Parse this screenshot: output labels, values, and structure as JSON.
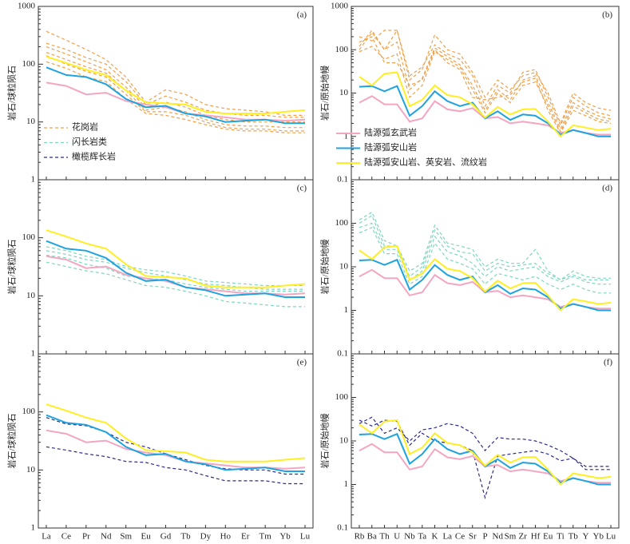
{
  "chart_data": [
    {
      "type": "line",
      "panel": "(a)",
      "ylabel": "岩石/球粒陨石",
      "log": true,
      "ylim": [
        1,
        1000
      ],
      "yticks": [
        1,
        10,
        100,
        1000
      ],
      "legend": [
        {
          "name": "花岗岩",
          "color": "#f0a04a",
          "dash": true
        },
        {
          "name": "闪长岩类",
          "color": "#7fd6c0",
          "dash": true
        },
        {
          "name": "橄榄辉长岩",
          "color": "#2b2b8c",
          "dash": true
        }
      ],
      "series": [
        {
          "color": "#f0a04a",
          "dash": true,
          "values": [
            370,
            260,
            180,
            120,
            60,
            22,
            36,
            30,
            20,
            17,
            16,
            15,
            13,
            13
          ]
        },
        {
          "color": "#f0a04a",
          "dash": true,
          "values": [
            230,
            180,
            130,
            100,
            50,
            20,
            28,
            22,
            16,
            14,
            13,
            13,
            12,
            12
          ]
        },
        {
          "color": "#f0a04a",
          "dash": true,
          "values": [
            200,
            150,
            110,
            80,
            40,
            18,
            22,
            18,
            13,
            11,
            10,
            10,
            10,
            10
          ]
        },
        {
          "color": "#f0a04a",
          "dash": true,
          "values": [
            160,
            120,
            90,
            70,
            35,
            16,
            18,
            15,
            11,
            9,
            8.5,
            8.5,
            8,
            8
          ]
        },
        {
          "color": "#f0a04a",
          "dash": true,
          "values": [
            140,
            100,
            75,
            60,
            30,
            15,
            15,
            13,
            10,
            8,
            7.5,
            7.5,
            7,
            7
          ]
        },
        {
          "color": "#f0a04a",
          "dash": true,
          "values": [
            110,
            85,
            60,
            50,
            25,
            14,
            13,
            11,
            9,
            7.5,
            7,
            7,
            6.5,
            6.5
          ]
        },
        {
          "color": "#f4a6c0",
          "dash": false,
          "values": [
            48,
            42,
            30,
            32,
            23,
            20,
            18,
            14,
            13,
            12,
            11,
            11,
            10.5,
            11
          ]
        },
        {
          "color": "#1ea3e0",
          "dash": false,
          "values": [
            88,
            65,
            60,
            45,
            25,
            18,
            19,
            14,
            12.5,
            10,
            10.5,
            11,
            9.5,
            9.5
          ]
        },
        {
          "color": "#ffee22",
          "dash": false,
          "values": [
            135,
            105,
            80,
            65,
            35,
            22,
            21,
            20,
            15,
            14,
            14,
            14,
            15,
            16
          ]
        }
      ]
    },
    {
      "type": "line",
      "panel": "(b)",
      "ylabel": "岩石/原始地幔",
      "log": true,
      "ylim": [
        0.1,
        1000
      ],
      "yticks": [
        0.1,
        1,
        10,
        100,
        1000
      ],
      "legend": [
        {
          "name": "陆源弧玄武岩",
          "color": "#f4a6c0",
          "dash": false
        },
        {
          "name": "陆源弧安山岩",
          "color": "#1ea3e0",
          "dash": false
        },
        {
          "name": "陆源弧安山岩、英安岩、流纹岩",
          "color": "#ffee22",
          "dash": false
        }
      ],
      "series": [
        {
          "color": "#f0a04a",
          "dash": true,
          "values": [
            120,
            280,
            100,
            280,
            20,
            35,
            220,
            100,
            80,
            30,
            8,
            20,
            12,
            25,
            30,
            10,
            2,
            10,
            6,
            4.5,
            4
          ]
        },
        {
          "color": "#f0a04a",
          "dash": true,
          "values": [
            200,
            160,
            280,
            280,
            25,
            40,
            130,
            80,
            60,
            25,
            5,
            15,
            10,
            30,
            35,
            8,
            1.8,
            8,
            5,
            3.5,
            3
          ]
        },
        {
          "color": "#f0a04a",
          "dash": true,
          "values": [
            100,
            250,
            100,
            150,
            12,
            22,
            110,
            70,
            45,
            15,
            4,
            12,
            7,
            20,
            25,
            6,
            1.5,
            6,
            4,
            3,
            2.5
          ]
        },
        {
          "color": "#f0a04a",
          "dash": true,
          "values": [
            90,
            120,
            60,
            80,
            8,
            15,
            90,
            60,
            40,
            12,
            3.5,
            10,
            6,
            15,
            18,
            5,
            1.3,
            5,
            3.5,
            2.5,
            2.2
          ]
        },
        {
          "color": "#f0a04a",
          "dash": true,
          "values": [
            150,
            200,
            50,
            50,
            15,
            20,
            100,
            50,
            35,
            8,
            7,
            8,
            9,
            18,
            22,
            4,
            1.2,
            4,
            3,
            2.2,
            2
          ]
        },
        {
          "color": "#f4a6c0",
          "dash": false,
          "values": [
            6,
            8.5,
            5.5,
            5.5,
            2.2,
            2.6,
            6.5,
            4.2,
            3.8,
            4.5,
            2.6,
            2.8,
            2,
            2.2,
            2,
            1.8,
            1.2,
            1.4,
            1.2,
            1.1,
            1.1
          ]
        },
        {
          "color": "#1ea3e0",
          "dash": false,
          "values": [
            14,
            14.5,
            11,
            14.5,
            3,
            5,
            11,
            6.5,
            5,
            6,
            2.6,
            3.8,
            2.4,
            3.2,
            3,
            2,
            1.1,
            1.4,
            1.2,
            1,
            1
          ]
        },
        {
          "color": "#ffee22",
          "dash": false,
          "values": [
            24,
            15,
            28,
            30,
            5,
            7,
            15,
            9,
            8,
            5.5,
            2.7,
            4.8,
            3.2,
            4.2,
            4.3,
            2.2,
            1,
            1.8,
            1.6,
            1.4,
            1.5
          ]
        }
      ]
    },
    {
      "type": "line",
      "panel": "(c)",
      "ylabel": "岩石/球粒陨石",
      "log": true,
      "ylim": [
        1,
        1000
      ],
      "yticks": [
        1,
        10,
        100
      ],
      "series": [
        {
          "color": "#7fd6c0",
          "dash": true,
          "values": [
            70,
            60,
            48,
            42,
            32,
            28,
            26,
            22,
            18,
            17,
            16,
            15,
            15,
            15
          ]
        },
        {
          "color": "#7fd6c0",
          "dash": true,
          "values": [
            60,
            52,
            42,
            38,
            30,
            25,
            22,
            19,
            16,
            15,
            14,
            13,
            13,
            13
          ]
        },
        {
          "color": "#7fd6c0",
          "dash": true,
          "values": [
            50,
            45,
            35,
            30,
            22,
            20,
            19,
            16,
            14,
            13,
            12,
            12,
            12,
            12
          ]
        },
        {
          "color": "#7fd6c0",
          "dash": true,
          "values": [
            38,
            32,
            27,
            24,
            19,
            15,
            14,
            12,
            10,
            8,
            7.5,
            7,
            6.5,
            6.5
          ]
        },
        {
          "color": "#f4a6c0",
          "dash": false,
          "values": [
            48,
            42,
            30,
            32,
            23,
            20,
            18,
            14,
            13,
            12,
            11,
            11,
            10.5,
            11
          ]
        },
        {
          "color": "#1ea3e0",
          "dash": false,
          "values": [
            88,
            65,
            60,
            45,
            25,
            18,
            19,
            14,
            12.5,
            10,
            10.5,
            11,
            9.5,
            9.5
          ]
        },
        {
          "color": "#ffee22",
          "dash": false,
          "values": [
            135,
            105,
            80,
            65,
            35,
            22,
            21,
            20,
            15,
            14,
            14,
            14,
            15,
            16
          ]
        }
      ]
    },
    {
      "type": "line",
      "panel": "(d)",
      "ylabel": "岩石/原始地幔",
      "log": true,
      "ylim": [
        0.1,
        1000
      ],
      "yticks": [
        0.1,
        1,
        10,
        100
      ],
      "series": [
        {
          "color": "#7fd6c0",
          "dash": true,
          "values": [
            120,
            180,
            40,
            30,
            8,
            12,
            90,
            35,
            30,
            25,
            10,
            15,
            12,
            12,
            25,
            8,
            5,
            8,
            6,
            5.5,
            5.5
          ]
        },
        {
          "color": "#7fd6c0",
          "dash": true,
          "values": [
            100,
            150,
            30,
            30,
            6,
            10,
            70,
            30,
            22,
            20,
            8,
            12,
            10,
            11,
            12,
            7,
            5,
            6.5,
            5,
            5,
            5
          ]
        },
        {
          "color": "#7fd6c0",
          "dash": true,
          "values": [
            80,
            100,
            25,
            25,
            5,
            8,
            50,
            22,
            18,
            12,
            6,
            10,
            8,
            9,
            10,
            6,
            4.5,
            6,
            4.5,
            4,
            4
          ]
        },
        {
          "color": "#7fd6c0",
          "dash": true,
          "values": [
            60,
            80,
            20,
            20,
            4,
            6,
            35,
            15,
            12,
            9,
            4,
            7,
            6,
            5,
            6,
            4,
            3,
            4,
            3,
            2.5,
            2.5
          ]
        },
        {
          "color": "#f4a6c0",
          "dash": false,
          "values": [
            6,
            8.5,
            5.5,
            5.5,
            2.2,
            2.6,
            6.5,
            4.2,
            3.8,
            4.5,
            2.6,
            2.8,
            2,
            2.2,
            2,
            1.8,
            1.2,
            1.4,
            1.2,
            1.1,
            1.1
          ]
        },
        {
          "color": "#1ea3e0",
          "dash": false,
          "values": [
            14,
            14.5,
            11,
            14.5,
            3,
            5,
            11,
            6.5,
            5,
            6,
            2.6,
            3.8,
            2.4,
            3.2,
            3,
            2,
            1.1,
            1.4,
            1.2,
            1,
            1
          ]
        },
        {
          "color": "#ffee22",
          "dash": false,
          "values": [
            24,
            15,
            28,
            30,
            5,
            7,
            15,
            9,
            8,
            5.5,
            2.7,
            4.8,
            3.2,
            4.2,
            4.3,
            2.2,
            1,
            1.8,
            1.6,
            1.4,
            1.5
          ]
        }
      ]
    },
    {
      "type": "line",
      "panel": "(e)",
      "ylabel": "岩石/球粒陨石",
      "log": true,
      "ylim": [
        1,
        1000
      ],
      "yticks": [
        1,
        10,
        100
      ],
      "categories": [
        "La",
        "Ce",
        "Pr",
        "Nd",
        "Sm",
        "Eu",
        "Gd",
        "Tb",
        "Dy",
        "Ho",
        "Er",
        "Tm",
        "Yb",
        "Lu"
      ],
      "series": [
        {
          "color": "#2b2b8c",
          "dash": true,
          "values": [
            80,
            62,
            58,
            45,
            30,
            25,
            19,
            15,
            12,
            10.5,
            10,
            10,
            8.5,
            8.5
          ]
        },
        {
          "color": "#2b2b8c",
          "dash": true,
          "values": [
            25,
            22,
            19,
            17,
            14,
            13.5,
            11,
            10,
            8,
            6.5,
            6.5,
            6.5,
            5.8,
            5.8
          ]
        },
        {
          "color": "#f4a6c0",
          "dash": false,
          "values": [
            48,
            42,
            30,
            32,
            23,
            20,
            18,
            14,
            13,
            12,
            11,
            11,
            10.5,
            11
          ]
        },
        {
          "color": "#1ea3e0",
          "dash": false,
          "values": [
            88,
            65,
            60,
            45,
            25,
            18,
            19,
            14,
            12.5,
            10,
            10.5,
            11,
            9.5,
            9.5
          ]
        },
        {
          "color": "#ffee22",
          "dash": false,
          "values": [
            135,
            105,
            80,
            65,
            35,
            22,
            21,
            20,
            15,
            14,
            14,
            14,
            15,
            16
          ]
        }
      ]
    },
    {
      "type": "line",
      "panel": "(f)",
      "ylabel": "岩石/原始地幔",
      "log": true,
      "ylim": [
        0.1,
        1000
      ],
      "yticks": [
        0.1,
        1,
        10,
        100
      ],
      "categories": [
        "Rb",
        "Ba",
        "Th",
        "U",
        "Nb",
        "Ta",
        "K",
        "La",
        "Ce",
        "Sr",
        "P",
        "Nd",
        "Sm",
        "Zr",
        "Hf",
        "Eu",
        "Ti",
        "Tb",
        "Y",
        "Yb",
        "Lu"
      ],
      "series": [
        {
          "color": "#2b2b8c",
          "dash": true,
          "values": [
            25,
            35,
            15,
            20,
            10,
            18,
            20,
            25,
            22,
            15,
            6,
            12,
            11,
            11,
            10,
            8,
            6,
            4,
            2.6,
            2.6,
            2.6
          ]
        },
        {
          "color": "#2b2b8c",
          "dash": true,
          "values": [
            30,
            22,
            30,
            28,
            8,
            15,
            10,
            9,
            8,
            6,
            0.5,
            4.5,
            5,
            5.5,
            6,
            5,
            3.5,
            4,
            2.2,
            2.2,
            2.2
          ]
        },
        {
          "color": "#f4a6c0",
          "dash": false,
          "values": [
            6,
            8.5,
            5.5,
            5.5,
            2.2,
            2.6,
            6.5,
            4.2,
            3.8,
            4.5,
            2.6,
            2.8,
            2,
            2.2,
            2,
            1.8,
            1.2,
            1.4,
            1.2,
            1.1,
            1.1
          ]
        },
        {
          "color": "#1ea3e0",
          "dash": false,
          "values": [
            14,
            14.5,
            11,
            14.5,
            3,
            5,
            11,
            6.5,
            5,
            6,
            2.6,
            3.8,
            2.4,
            3.2,
            3,
            2,
            1.1,
            1.4,
            1.2,
            1,
            1
          ]
        },
        {
          "color": "#ffee22",
          "dash": false,
          "values": [
            24,
            15,
            28,
            30,
            5,
            7,
            15,
            9,
            8,
            5.5,
            2.7,
            4.8,
            3.2,
            4.2,
            4.3,
            2.2,
            1,
            1.8,
            1.6,
            1.4,
            1.5
          ]
        }
      ]
    }
  ]
}
